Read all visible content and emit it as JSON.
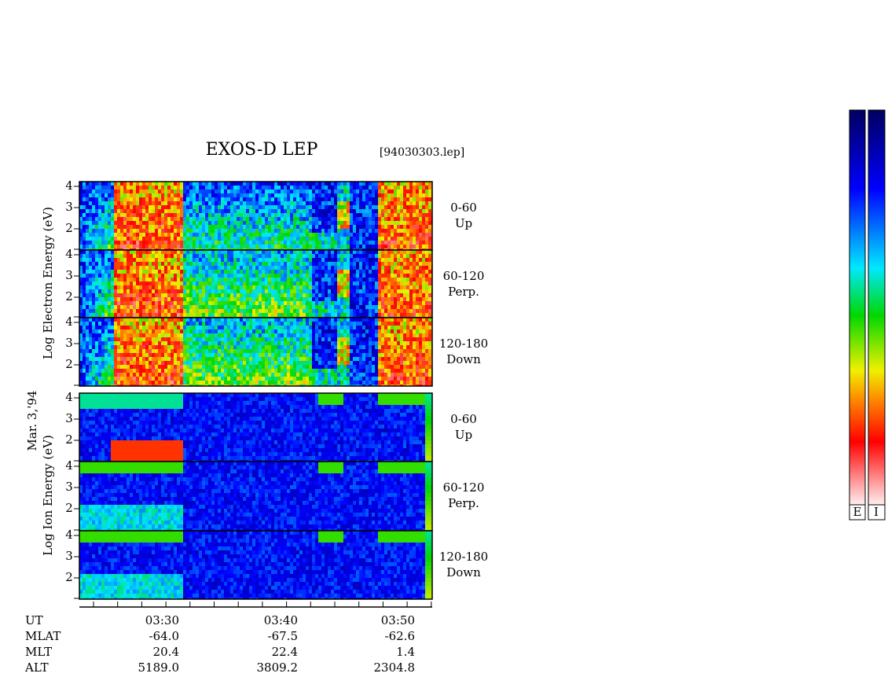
{
  "title": "EXOS-D LEP",
  "file": "[94030303.lep]",
  "date": "Mar. 3,'94",
  "electron_axis_label": "Log Electron Energy (eV)",
  "ion_axis_label": "Log Ion Energy (eV)",
  "panels": [
    {
      "ticks": [
        "4",
        "3",
        "2"
      ],
      "angle": "0-60",
      "direction": "Up"
    },
    {
      "ticks": [
        "4",
        "3",
        "2"
      ],
      "angle": "60-120",
      "direction": "Perp."
    },
    {
      "ticks": [
        "4",
        "3",
        "2"
      ],
      "angle": "120-180",
      "direction": "Down"
    },
    {
      "ticks": [
        "4",
        "3",
        "2"
      ],
      "angle": "0-60",
      "direction": "Up"
    },
    {
      "ticks": [
        "4",
        "3",
        "2"
      ],
      "angle": "60-120",
      "direction": "Perp."
    },
    {
      "ticks": [
        "4",
        "3",
        "2"
      ],
      "angle": "120-180",
      "direction": "Down"
    }
  ],
  "x_axis": {
    "row_labels": [
      "UT",
      "MLAT",
      "MLT",
      "ALT"
    ],
    "columns": [
      [
        "03:30",
        "-64.0",
        "20.4",
        "5189.0"
      ],
      [
        "03:40",
        "-67.5",
        "22.4",
        "3809.2"
      ],
      [
        "03:50",
        "-62.6",
        "1.4",
        "2304.8"
      ]
    ]
  },
  "colorbars": [
    "E",
    "I"
  ]
}
